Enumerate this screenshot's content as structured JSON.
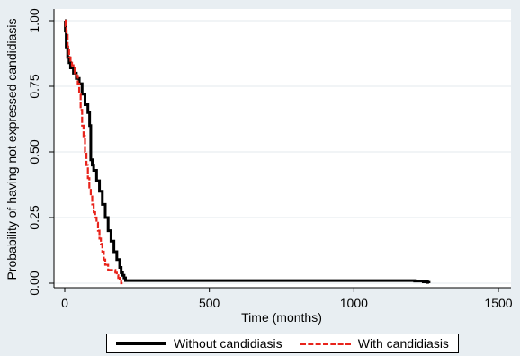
{
  "chart_data": {
    "type": "line",
    "title": "",
    "xlabel": "Time (months)",
    "ylabel": "Probability of having not expressed candidiasis",
    "xlim": [
      0,
      1500
    ],
    "ylim": [
      0,
      1
    ],
    "x_ticks": [
      0,
      500,
      1000,
      1500
    ],
    "x_tick_labels": [
      "0",
      "500",
      "1000",
      "1500"
    ],
    "y_ticks": [
      0,
      0.25,
      0.5,
      0.75,
      1
    ],
    "y_tick_labels": [
      "0.00",
      "0.25",
      "0.50",
      "0.75",
      "1.00"
    ],
    "grid": "horizontal",
    "legend_position": "bottom",
    "series": [
      {
        "name": "Without candidiasis",
        "color": "#000000",
        "style": "solid",
        "x": [
          0,
          2,
          5,
          10,
          15,
          20,
          30,
          40,
          50,
          60,
          70,
          80,
          86,
          90,
          95,
          100,
          110,
          120,
          130,
          140,
          150,
          160,
          170,
          180,
          190,
          195,
          200,
          205,
          210,
          215,
          250,
          500,
          1000,
          1180,
          1210,
          1240,
          1255,
          1260
        ],
        "y": [
          1.0,
          0.96,
          0.9,
          0.86,
          0.84,
          0.82,
          0.8,
          0.78,
          0.76,
          0.72,
          0.68,
          0.65,
          0.6,
          0.47,
          0.45,
          0.43,
          0.39,
          0.35,
          0.3,
          0.25,
          0.2,
          0.16,
          0.12,
          0.09,
          0.06,
          0.04,
          0.03,
          0.02,
          0.01,
          0.01,
          0.01,
          0.01,
          0.01,
          0.01,
          0.008,
          0.005,
          0.003,
          0.0
        ]
      },
      {
        "name": "With candidiasis",
        "color": "#e8231b",
        "style": "dashed",
        "x": [
          0,
          3,
          6,
          10,
          15,
          20,
          25,
          30,
          35,
          40,
          45,
          50,
          55,
          60,
          65,
          70,
          75,
          80,
          85,
          90,
          95,
          100,
          105,
          110,
          115,
          120,
          125,
          130,
          135,
          140,
          150,
          160,
          170,
          175,
          180,
          185,
          190,
          195,
          200
        ],
        "y": [
          1.0,
          0.98,
          0.95,
          0.9,
          0.86,
          0.84,
          0.83,
          0.82,
          0.8,
          0.79,
          0.76,
          0.72,
          0.66,
          0.6,
          0.56,
          0.5,
          0.45,
          0.4,
          0.36,
          0.33,
          0.3,
          0.27,
          0.25,
          0.23,
          0.2,
          0.17,
          0.15,
          0.12,
          0.09,
          0.07,
          0.05,
          0.05,
          0.05,
          0.04,
          0.03,
          0.02,
          0.01,
          0.0,
          0.0
        ]
      }
    ]
  }
}
